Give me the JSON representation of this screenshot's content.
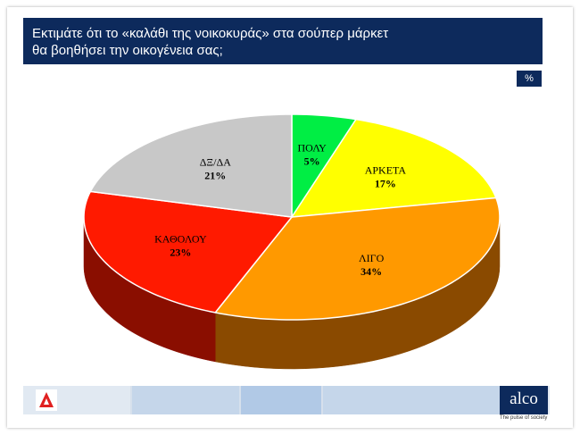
{
  "title": {
    "line1": "Εκτιμάτε ότι το «καλάθι της νοικοκυράς» στα σούπερ μάρκετ",
    "line2": "θα βοηθήσει την οικογένεια σας;"
  },
  "unit_badge": "%",
  "chart_data": {
    "type": "pie",
    "categories": [
      "ΠΟΛΥ",
      "ΑΡΚΕΤΑ",
      "ΛΙΓΟ",
      "ΚΑΘΟΛΟΥ",
      "ΔΞ/ΔΑ"
    ],
    "values": [
      5,
      17,
      34,
      23,
      21
    ],
    "value_labels": [
      "5%",
      "17%",
      "34%",
      "23%",
      "21%"
    ],
    "colors": [
      "#00ee44",
      "#ffff00",
      "#ff9900",
      "#ff1a00",
      "#c8c8c8"
    ],
    "side_colors": [
      "#008822",
      "#999900",
      "#8a4a00",
      "#8a0e00",
      "#6e6e6e"
    ],
    "style": "3d"
  },
  "footer": {
    "brand": "alco",
    "tagline": "The pulse of society",
    "strip_colors": [
      "#e1e9f2",
      "#c5d6ea",
      "#b1c9e6",
      "#c5d6ea",
      "#e1e9f2"
    ]
  }
}
